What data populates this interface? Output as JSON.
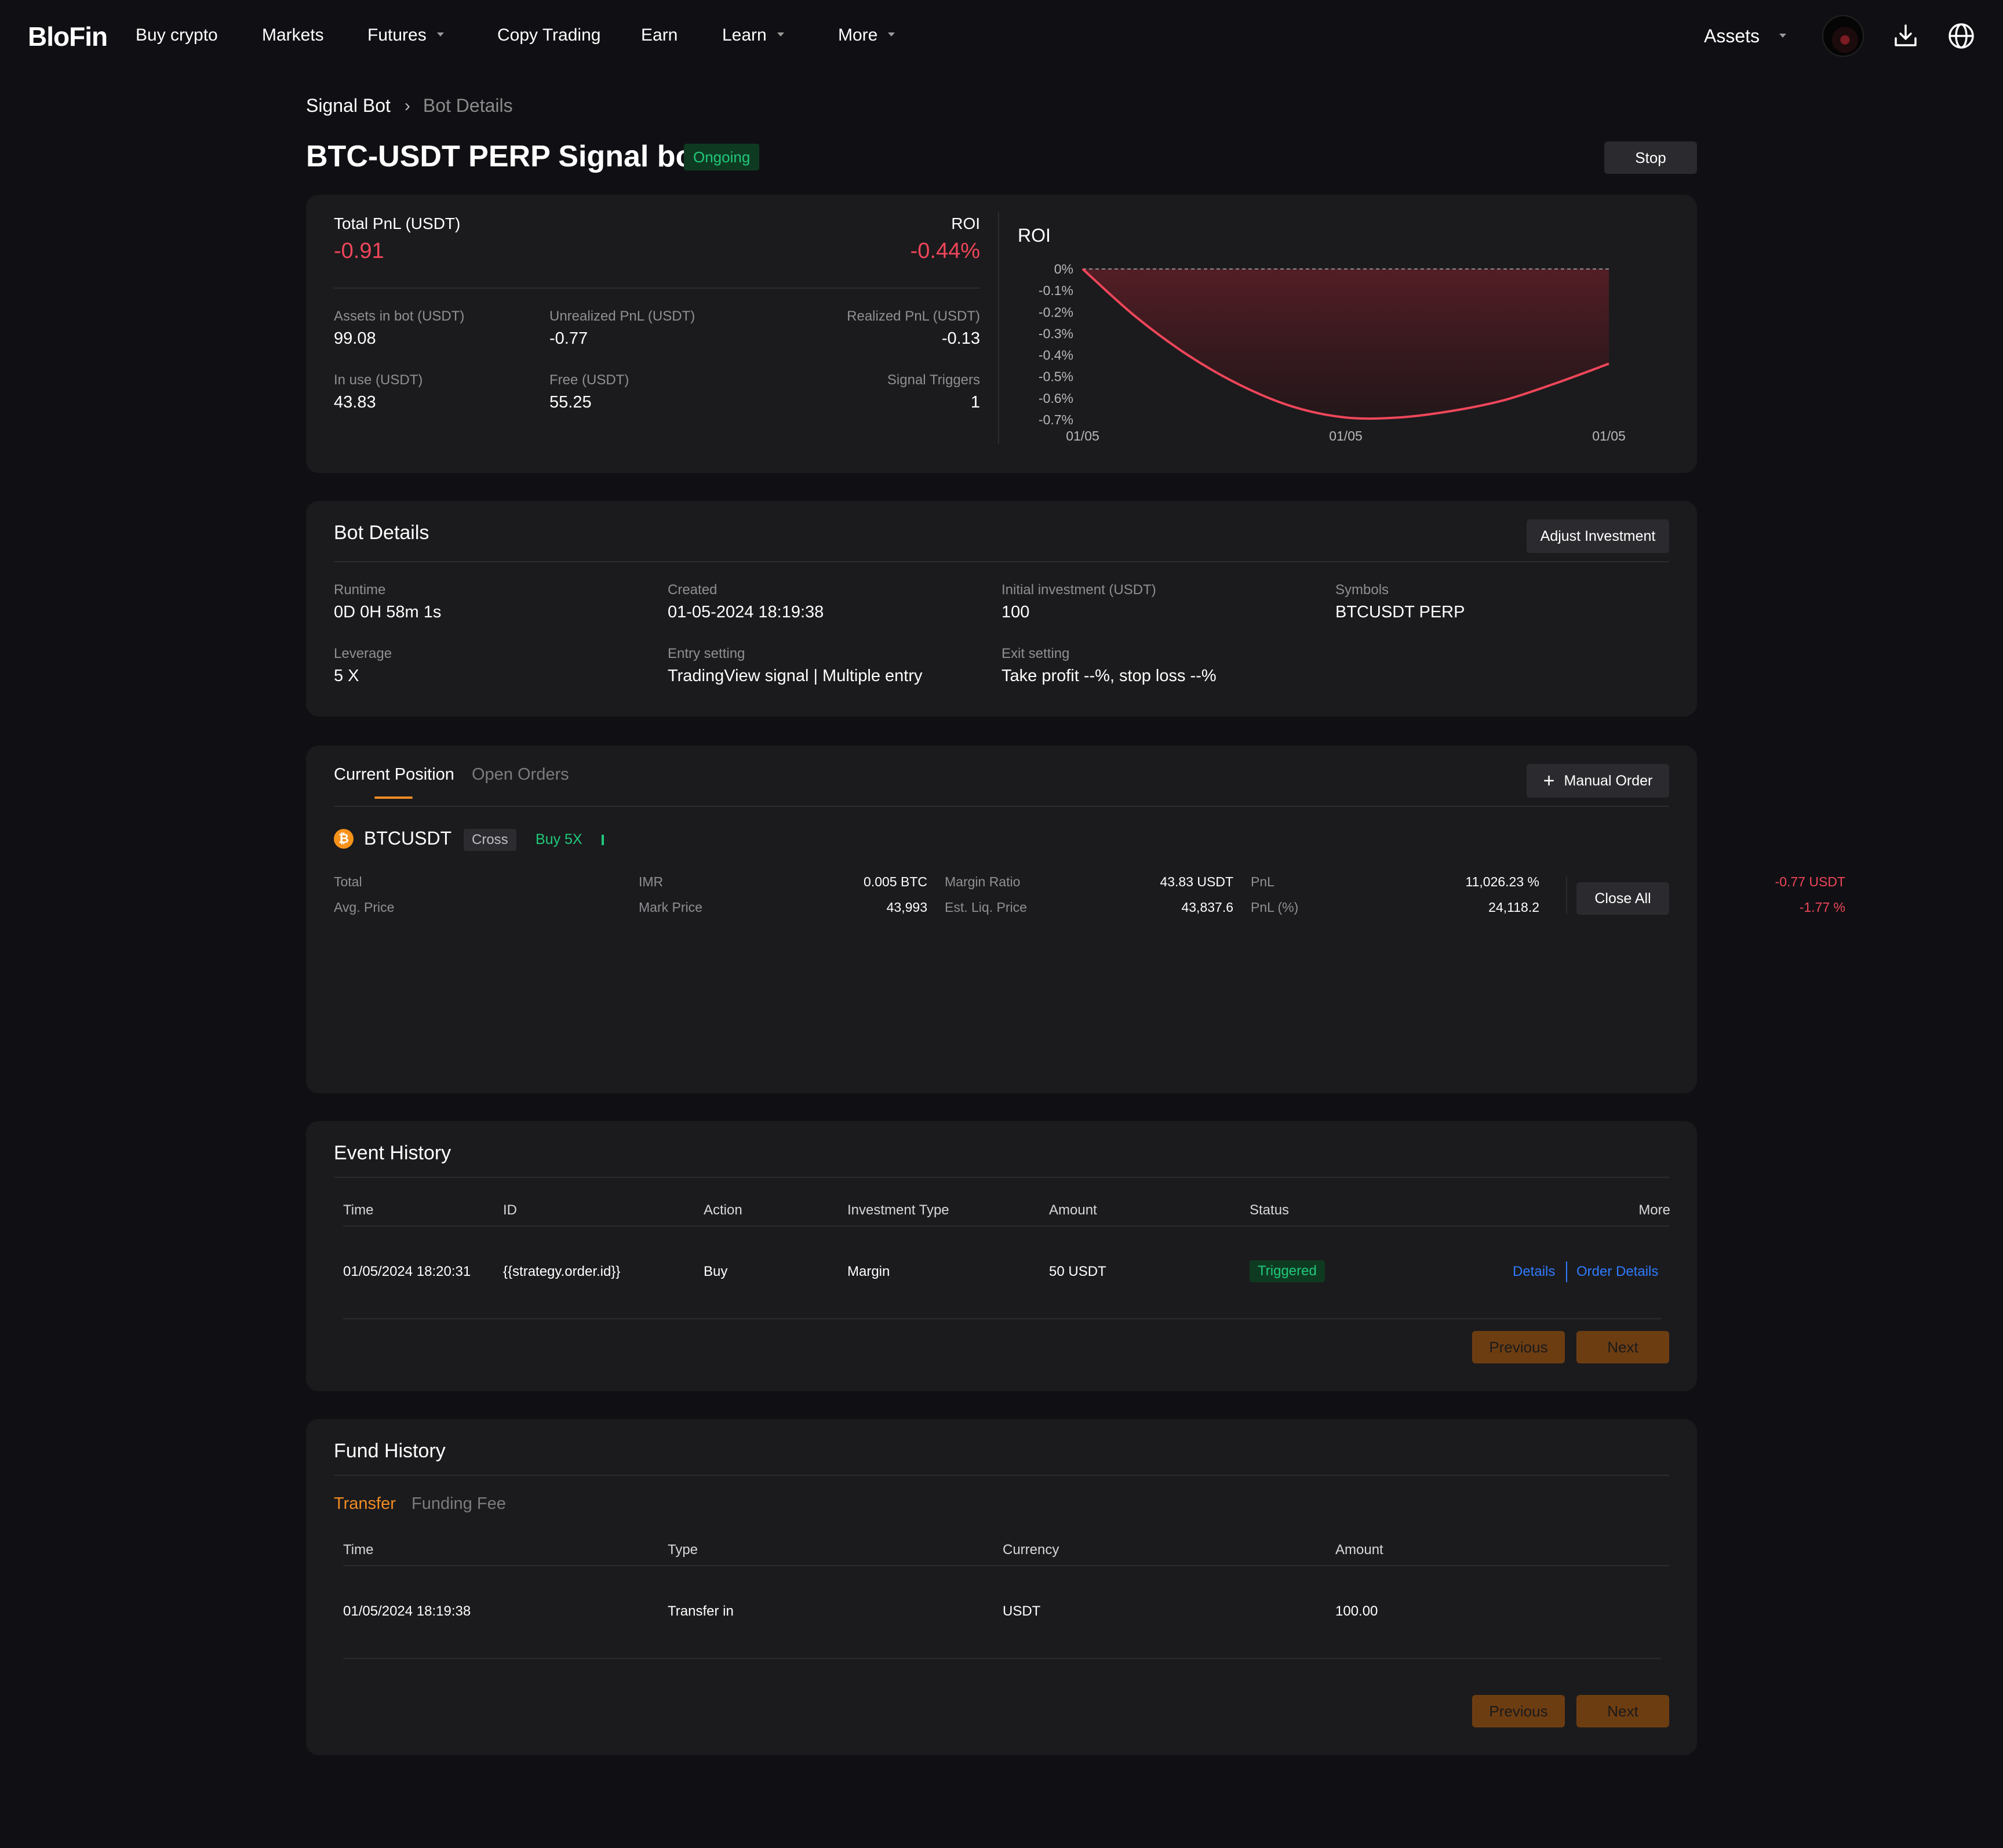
{
  "nav": {
    "logo": "BloFin",
    "items": [
      {
        "label": "Buy crypto",
        "has_caret": false
      },
      {
        "label": "Markets",
        "has_caret": false
      },
      {
        "label": "Futures",
        "has_caret": true
      },
      {
        "label": "Copy Trading",
        "has_caret": false
      },
      {
        "label": "Earn",
        "has_caret": false
      },
      {
        "label": "Learn",
        "has_caret": true
      },
      {
        "label": "More",
        "has_caret": true
      }
    ],
    "assets_label": "Assets",
    "icons": [
      "avatar",
      "download-icon",
      "globe-icon"
    ]
  },
  "breadcrumb": {
    "root": "Signal Bot",
    "current": "Bot Details"
  },
  "header": {
    "title": "BTC-USDT PERP Signal bot",
    "status": "Ongoing",
    "stop_label": "Stop"
  },
  "summary": {
    "total_pnl_label": "Total PnL (USDT)",
    "total_pnl_value": "-0.91",
    "roi_label": "ROI",
    "roi_value": "-0.44%",
    "stats": {
      "assets_label": "Assets in bot (USDT)",
      "assets_value": "99.08",
      "unrealized_label": "Unrealized PnL (USDT)",
      "unrealized_value": "-0.77",
      "realized_label": "Realized PnL (USDT)",
      "realized_value": "-0.13",
      "inuse_label": "In use (USDT)",
      "inuse_value": "43.83",
      "free_label": "Free (USDT)",
      "free_value": "55.25",
      "triggers_label": "Signal Triggers",
      "triggers_value": "1"
    }
  },
  "chart_data": {
    "type": "area",
    "title": "ROI",
    "x_ticks": [
      "01/05",
      "01/05",
      "01/05"
    ],
    "y_ticks": [
      "0%",
      "-0.1%",
      "-0.2%",
      "-0.3%",
      "-0.4%",
      "-0.5%",
      "-0.6%",
      "-0.7%"
    ],
    "ylim": [
      -0.7,
      0
    ],
    "baseline_value": 0,
    "series": [
      {
        "color": "#f0465a",
        "x": [
          0,
          0.1,
          0.2,
          0.3,
          0.4,
          0.5,
          0.6,
          0.7,
          0.8,
          0.9,
          1.0
        ],
        "values": [
          0,
          -0.22,
          -0.4,
          -0.54,
          -0.64,
          -0.69,
          -0.69,
          -0.66,
          -0.61,
          -0.53,
          -0.44
        ]
      }
    ]
  },
  "bot_details": {
    "title": "Bot Details",
    "adjust_label": "Adjust Investment",
    "fields": {
      "runtime_label": "Runtime",
      "runtime_value": "0D 0H 58m 1s",
      "created_label": "Created",
      "created_value": "01-05-2024 18:19:38",
      "initial_label": "Initial investment (USDT)",
      "initial_value": "100",
      "symbols_label": "Symbols",
      "symbols_value": "BTCUSDT PERP",
      "leverage_label": "Leverage",
      "leverage_value": "5 X",
      "entry_label": "Entry setting",
      "entry_value": "TradingView signal | Multiple entry",
      "exit_label": "Exit setting",
      "exit_value": "Take profit --%, stop loss --%"
    }
  },
  "positions": {
    "tabs": [
      "Current Position",
      "Open Orders"
    ],
    "manual_order_label": "Manual Order",
    "symbol": "BTCUSDT",
    "coin_glyph": "₿",
    "mode_tag": "Cross",
    "side_tag": "Buy 5X",
    "total_label": "Total",
    "total_value": "0.005 BTC",
    "avg_label": "Avg. Price",
    "avg_value": "43,993",
    "imr_label": "IMR",
    "imr_value": "43.83 USDT",
    "mark_label": "Mark Price",
    "mark_value": "43,837.6",
    "margin_ratio_label": "Margin Ratio",
    "margin_ratio_value": "11,026.23 %",
    "liq_label": "Est. Liq. Price",
    "liq_value": "24,118.2",
    "pnl_label": "PnL",
    "pnl_value": "-0.77 USDT",
    "pnl_pct_label": "PnL (%)",
    "pnl_pct_value": "-1.77 %",
    "close_all_label": "Close All"
  },
  "event_history": {
    "title": "Event History",
    "columns": [
      "Time",
      "ID",
      "Action",
      "Investment Type",
      "Amount",
      "Status",
      "More"
    ],
    "rows": [
      {
        "time": "01/05/2024 18:20:31",
        "id": "{{strategy.order.id}}",
        "action": "Buy",
        "type": "Margin",
        "amount": "50 USDT",
        "status": "Triggered",
        "link1": "Details",
        "link2": "Order Details"
      }
    ],
    "prev_label": "Previous",
    "next_label": "Next"
  },
  "fund_history": {
    "title": "Fund History",
    "tabs": [
      "Transfer",
      "Funding Fee"
    ],
    "columns": [
      "Time",
      "Type",
      "Currency",
      "Amount"
    ],
    "rows": [
      {
        "time": "01/05/2024 18:19:38",
        "type": "Transfer in",
        "currency": "USDT",
        "amount": "100.00"
      }
    ],
    "prev_label": "Previous",
    "next_label": "Next"
  }
}
